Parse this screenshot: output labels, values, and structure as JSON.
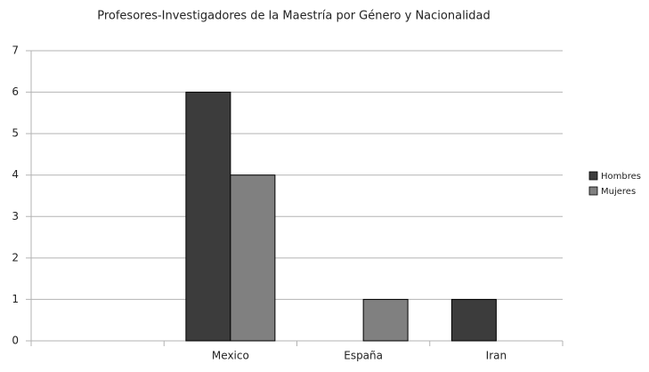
{
  "chart_data": {
    "type": "bar",
    "title": "Profesores-Investigadores de la Maestría por Género y Nacionalidad",
    "categories": [
      null,
      "Mexico",
      "España",
      "Iran"
    ],
    "series": [
      {
        "name": "Hombres",
        "color": "#3c3c3c",
        "values": [
          null,
          6,
          0,
          1
        ]
      },
      {
        "name": "Mujeres",
        "color": "#808080",
        "values": [
          null,
          4,
          1,
          0
        ]
      }
    ],
    "ylim": [
      0,
      7
    ],
    "yticks": [
      0,
      1,
      2,
      3,
      4,
      5,
      6,
      7
    ],
    "grid": true,
    "legend": "right"
  }
}
